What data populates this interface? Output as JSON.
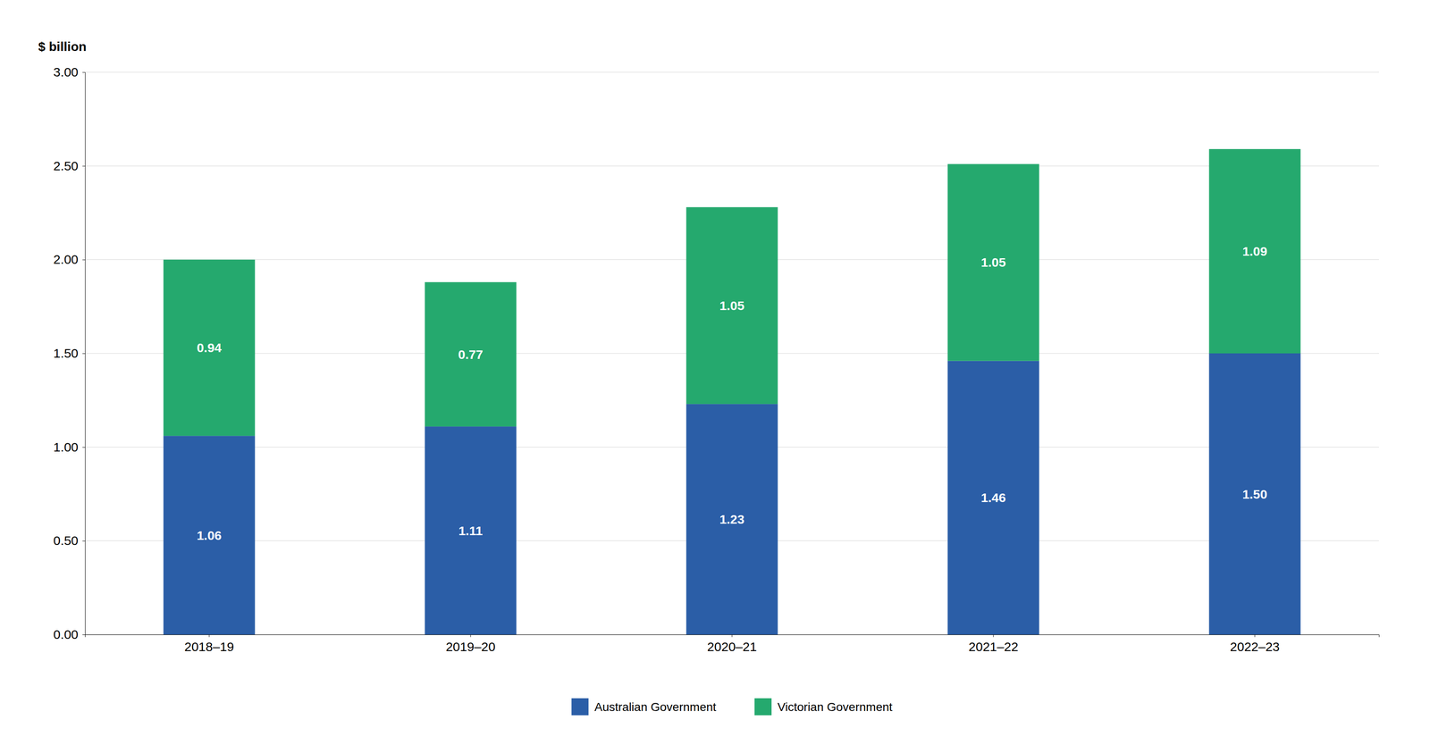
{
  "chart_data": {
    "type": "bar",
    "stacked": true,
    "ylabel": "$ billion",
    "categories": [
      "2018–19",
      "2019–20",
      "2020–21",
      "2021–22",
      "2022–23"
    ],
    "series": [
      {
        "name": "Australian Government",
        "color": "#2B5EA7",
        "values": [
          1.06,
          1.11,
          1.23,
          1.46,
          1.5
        ],
        "value_labels": [
          "1.06",
          "1.11",
          "1.23",
          "1.46",
          "1.50"
        ]
      },
      {
        "name": "Victorian Government",
        "color": "#25A96E",
        "values": [
          0.94,
          0.77,
          1.05,
          1.05,
          1.09
        ],
        "value_labels": [
          "0.94",
          "0.77",
          "1.05",
          "1.05",
          "1.09"
        ]
      }
    ],
    "ylim": [
      0,
      3.0
    ],
    "yticks": [
      {
        "value": 0.0,
        "label": "0.00"
      },
      {
        "value": 0.5,
        "label": "0.50"
      },
      {
        "value": 1.0,
        "label": "1.00"
      },
      {
        "value": 1.5,
        "label": "1.50"
      },
      {
        "value": 2.0,
        "label": "2.00"
      },
      {
        "value": 2.5,
        "label": "2.50"
      },
      {
        "value": 3.0,
        "label": "3.00"
      }
    ],
    "grid": true,
    "legend": "bottom",
    "data_labels": true
  }
}
